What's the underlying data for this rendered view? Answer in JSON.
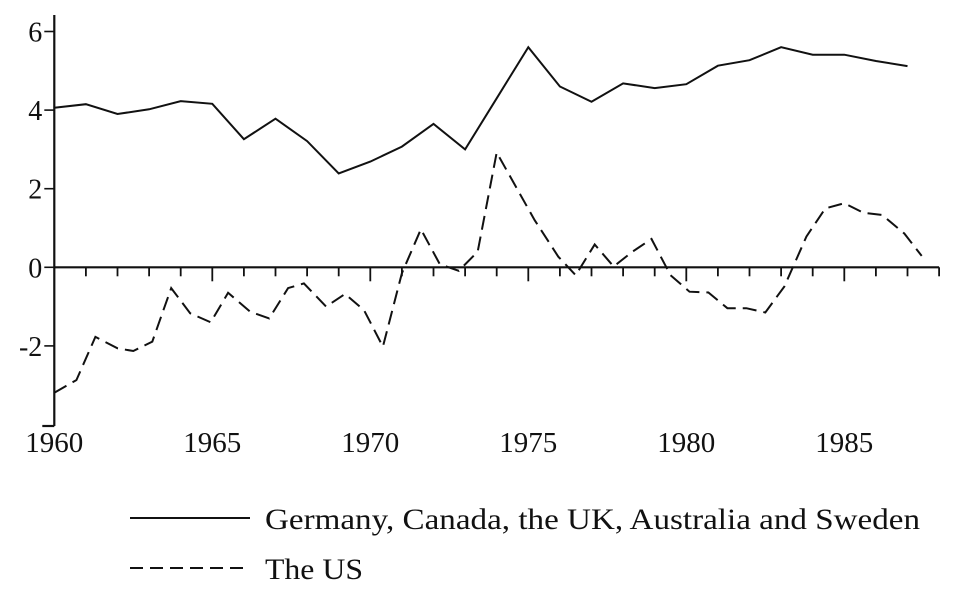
{
  "chart_data": {
    "type": "line",
    "title": "",
    "xlabel": "",
    "ylabel": "",
    "xlim": [
      1960,
      1988
    ],
    "ylim": [
      -4,
      6.4
    ],
    "grid": false,
    "legend_placement": "bottom",
    "x_ticks": [
      1960,
      1965,
      1970,
      1975,
      1980,
      1985
    ],
    "x_tick_labels": [
      "1960",
      "1965",
      "1970",
      "1975",
      "1980",
      "1985"
    ],
    "x_minor_ticks_every": 1,
    "y_ticks": [
      6,
      4,
      2,
      0,
      -2
    ],
    "y_tick_labels": [
      "6",
      "4",
      "2",
      "0",
      "-2"
    ],
    "series": [
      {
        "name": "Germany, Canada, the UK, Australia and Sweden",
        "style": "solid",
        "color": "#111111",
        "points": [
          [
            1960,
            4.06
          ],
          [
            1961,
            4.15
          ],
          [
            1962,
            3.9
          ],
          [
            1963,
            4.02
          ],
          [
            1964,
            4.23
          ],
          [
            1965,
            4.16
          ],
          [
            1966,
            3.26
          ],
          [
            1967,
            3.78
          ],
          [
            1968,
            3.21
          ],
          [
            1969,
            2.39
          ],
          [
            1970,
            2.69
          ],
          [
            1971,
            3.07
          ],
          [
            1972,
            3.65
          ],
          [
            1973,
            3.0
          ],
          [
            1974,
            4.3
          ],
          [
            1975,
            5.6
          ],
          [
            1976,
            4.6
          ],
          [
            1977,
            4.21
          ],
          [
            1978,
            4.68
          ],
          [
            1979,
            4.56
          ],
          [
            1980,
            4.66
          ],
          [
            1981,
            5.13
          ],
          [
            1982,
            5.27
          ],
          [
            1983,
            5.6
          ],
          [
            1984,
            5.41
          ],
          [
            1985,
            5.41
          ],
          [
            1986,
            5.25
          ],
          [
            1987,
            5.12
          ]
        ]
      },
      {
        "name": "The US",
        "style": "dashed",
        "color": "#111111",
        "points": [
          [
            1960,
            -3.19
          ],
          [
            1960.7,
            -2.87
          ],
          [
            1961.3,
            -1.77
          ],
          [
            1962,
            -2.06
          ],
          [
            1962.5,
            -2.13
          ],
          [
            1963.1,
            -1.89
          ],
          [
            1963.7,
            -0.53
          ],
          [
            1964.3,
            -1.17
          ],
          [
            1964.95,
            -1.4
          ],
          [
            1965.5,
            -0.65
          ],
          [
            1966.2,
            -1.13
          ],
          [
            1966.8,
            -1.3
          ],
          [
            1967.4,
            -0.53
          ],
          [
            1967.9,
            -0.41
          ],
          [
            1968.6,
            -1.0
          ],
          [
            1969.2,
            -0.68
          ],
          [
            1969.8,
            -1.09
          ],
          [
            1970.4,
            -2.02
          ],
          [
            1971.0,
            -0.15
          ],
          [
            1971.6,
            0.97
          ],
          [
            1972.2,
            0.08
          ],
          [
            1972.8,
            -0.09
          ],
          [
            1973.4,
            0.4
          ],
          [
            1974.0,
            2.92
          ],
          [
            1975.2,
            1.2
          ],
          [
            1975.95,
            0.27
          ],
          [
            1976.5,
            -0.2
          ],
          [
            1977.1,
            0.58
          ],
          [
            1977.7,
            0.02
          ],
          [
            1978.3,
            0.4
          ],
          [
            1978.9,
            0.72
          ],
          [
            1979.5,
            -0.2
          ],
          [
            1980.1,
            -0.62
          ],
          [
            1980.7,
            -0.64
          ],
          [
            1981.3,
            -1.04
          ],
          [
            1981.9,
            -1.04
          ],
          [
            1982.5,
            -1.15
          ],
          [
            1983.1,
            -0.49
          ],
          [
            1983.8,
            0.78
          ],
          [
            1984.4,
            1.5
          ],
          [
            1985.0,
            1.63
          ],
          [
            1985.6,
            1.39
          ],
          [
            1986.2,
            1.33
          ],
          [
            1986.9,
            0.86
          ],
          [
            1987.45,
            0.29
          ]
        ]
      }
    ]
  }
}
